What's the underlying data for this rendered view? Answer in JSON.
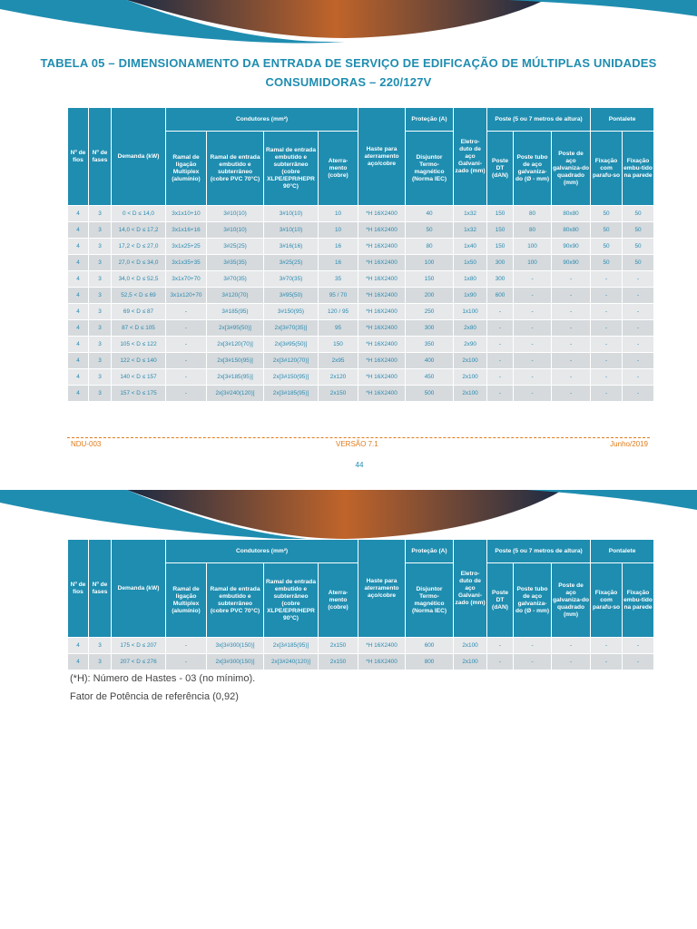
{
  "title": [
    "TABELA 05 – DIMENSIONAMENTO DA ENTRADA DE SERVIÇO DE EDIFICAÇÃO DE MÚLTIPLAS UNIDADES",
    "CONSUMIDORAS – 220/127V"
  ],
  "table_header": {
    "top": [
      "Nº de fios",
      "Nº de fases",
      "Demanda (kW)",
      "Condutores (mm²)",
      "Haste para aterramento aço/cobre",
      "Proteção (A)",
      "Eletro-duto de aço Galvani-zado (mm)",
      "Poste (5 ou 7 metros de altura)",
      "Pontalete"
    ],
    "sub": [
      "Ramal de ligação Multiplex (alumínio)",
      "Ramal de entrada embutido e subterrâneo (cobre PVC 70°C)",
      "Ramal de entrada embutido e subterrâneo (cobre XLPE/EPR/HEPR 90°C)",
      "Aterra-mento (cobre)",
      "Disjuntor Termo-magnético (Norma IEC)",
      "Poste DT (dAN)",
      "Poste tubo de aço galvaniza-do (Ø - mm)",
      "Poste de aço galvaniza-do quadrado (mm)",
      "Fixação com parafu-so",
      "Fixação embu-tido na parede"
    ]
  },
  "table1_rows": [
    [
      "4",
      "3",
      "0 < D ≤ 14,0",
      "3x1x10+10",
      "3#10(10)",
      "3#10(10)",
      "10",
      "*H 16X2400",
      "40",
      "1x32",
      "150",
      "80",
      "80x80",
      "50",
      "50"
    ],
    [
      "4",
      "3",
      "14,0 < D ≤ 17,2",
      "3x1x16+16",
      "3#10(10)",
      "3#10(10)",
      "10",
      "*H 16X2400",
      "50",
      "1x32",
      "150",
      "80",
      "80x80",
      "50",
      "50"
    ],
    [
      "4",
      "3",
      "17,2 < D ≤ 27,0",
      "3x1x25+25",
      "3#25(25)",
      "3#16(16)",
      "16",
      "*H 16X2400",
      "80",
      "1x40",
      "150",
      "100",
      "90x90",
      "50",
      "50"
    ],
    [
      "4",
      "3",
      "27,0 < D ≤ 34,0",
      "3x1x35+35",
      "3#35(35)",
      "3#25(25)",
      "16",
      "*H 16X2400",
      "100",
      "1x50",
      "300",
      "100",
      "90x90",
      "50",
      "50"
    ],
    [
      "4",
      "3",
      "34,0 < D ≤ 52,5",
      "3x1x70+70",
      "3#70(35)",
      "3#70(35)",
      "35",
      "*H 16X2400",
      "150",
      "1x80",
      "300",
      "-",
      "-",
      "-",
      "-"
    ],
    [
      "4",
      "3",
      "52,5 < D ≤ 69",
      "3x1x120+70",
      "3#120(70)",
      "3#95(50)",
      "95 / 70",
      "*H 16X2400",
      "200",
      "1x90",
      "600",
      "-",
      "-",
      "-",
      "-"
    ],
    [
      "4",
      "3",
      "69 < D ≤ 87",
      "-",
      "3#185(95)",
      "3#150(95)",
      "120 / 95",
      "*H 16X2400",
      "250",
      "1x100",
      "-",
      "-",
      "-",
      "-",
      "-"
    ],
    [
      "4",
      "3",
      "87 < D ≤ 105",
      "-",
      "2x[3#95(50)]",
      "2x[3#70(35)]",
      "95",
      "*H 16X2400",
      "300",
      "2x80",
      "-",
      "-",
      "-",
      "-",
      "-"
    ],
    [
      "4",
      "3",
      "105 < D ≤ 122",
      "-",
      "2x[3#120(70)]",
      "2x[3#95(50)]",
      "150",
      "*H 16X2400",
      "350",
      "2x90",
      "-",
      "-",
      "-",
      "-",
      "-"
    ],
    [
      "4",
      "3",
      "122 < D ≤ 140",
      "-",
      "2x[3#150(95)]",
      "2x[3#120(70)]",
      "2x95",
      "*H 16X2400",
      "400",
      "2x100",
      "-",
      "-",
      "-",
      "-",
      "-"
    ],
    [
      "4",
      "3",
      "140 < D ≤ 157",
      "-",
      "2x[3#185(95)]",
      "2x[3#150(95)]",
      "2x120",
      "*H 16X2400",
      "450",
      "2x100",
      "-",
      "-",
      "-",
      "-",
      "-"
    ],
    [
      "4",
      "3",
      "157 < D ≤ 175",
      "-",
      "2x[3#240(120)]",
      "2x[3#185(95)]",
      "2x150",
      "*H 16X2400",
      "500",
      "2x100",
      "-",
      "-",
      "-",
      "-",
      "-"
    ]
  ],
  "footer": {
    "left": "NDU-003",
    "center": "VERSÃO 7.1",
    "right": "Junho/2019"
  },
  "page_number": "44",
  "table2_rows": [
    [
      "4",
      "3",
      "175 < D ≤ 207",
      "-",
      "3x[3#300(150)]",
      "2x[3#185(95)]",
      "2x150",
      "*H 16X2400",
      "600",
      "2x100",
      "-",
      "-",
      "-",
      "-",
      "-"
    ],
    [
      "4",
      "3",
      "207 < D ≤ 276",
      "-",
      "2x[3#300(150)]",
      "2x[3#240(120)]",
      "2x150",
      "*H 16X2400",
      "800",
      "2x100",
      "-",
      "-",
      "-",
      "-",
      "-"
    ]
  ],
  "notes": [
    "(*H): Número de Hastes - 03 (no mínimo).",
    "Fator de Potência de referência (0,92)"
  ]
}
